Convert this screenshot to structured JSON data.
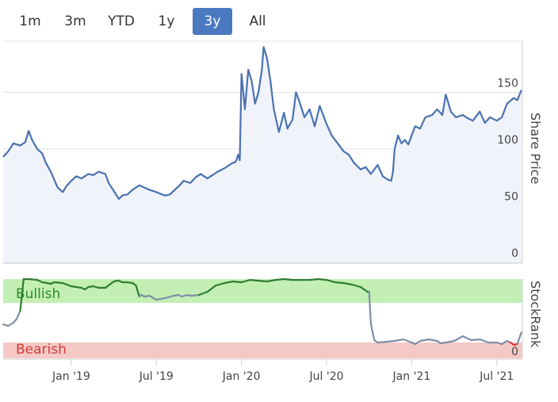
{
  "range_selector": {
    "buttons": [
      "1m",
      "3m",
      "YTD",
      "1y",
      "3y",
      "All"
    ],
    "selected": "3y"
  },
  "colors": {
    "price_line": "#4a72b0",
    "price_fill": "#f1f3fb",
    "bullish_band": "#c4efb4",
    "bearish_band": "#f4c9c5",
    "bullish_line": "#2e7d32",
    "neutral_line": "#7f8fa6",
    "bearish_line": "#d93a3a",
    "selected_button": "#4a79bf"
  },
  "chart_data": [
    {
      "type": "area",
      "name": "price-chart",
      "ylabel": "Share Price",
      "ylim": [
        0,
        195
      ],
      "yticks": [
        0,
        50,
        100,
        150
      ],
      "xlim": [
        2018.6,
        2021.65
      ],
      "xticks": [
        {
          "value": 2019.0,
          "label": "Jan '19"
        },
        {
          "value": 2019.5,
          "label": "Jul '19"
        },
        {
          "value": 2020.0,
          "label": "Jan '20"
        },
        {
          "value": 2020.5,
          "label": "Jul '20"
        },
        {
          "value": 2021.0,
          "label": "Jan '21"
        },
        {
          "value": 2021.5,
          "label": "Jul '21"
        }
      ],
      "series": [
        {
          "name": "Share Price",
          "x": [
            2018.6,
            2018.63,
            2018.66,
            2018.7,
            2018.73,
            2018.75,
            2018.77,
            2018.8,
            2018.83,
            2018.85,
            2018.88,
            2018.92,
            2018.95,
            2018.97,
            2019.0,
            2019.03,
            2019.06,
            2019.1,
            2019.13,
            2019.16,
            2019.2,
            2019.22,
            2019.25,
            2019.28,
            2019.3,
            2019.33,
            2019.36,
            2019.4,
            2019.43,
            2019.46,
            2019.5,
            2019.55,
            2019.58,
            2019.6,
            2019.63,
            2019.66,
            2019.7,
            2019.73,
            2019.76,
            2019.8,
            2019.83,
            2019.86,
            2019.9,
            2019.93,
            2019.95,
            2019.96,
            2019.97,
            2019.98,
            2019.99,
            2020.0,
            2020.02,
            2020.04,
            2020.06,
            2020.08,
            2020.1,
            2020.12,
            2020.13,
            2020.15,
            2020.17,
            2020.19,
            2020.22,
            2020.25,
            2020.27,
            2020.3,
            2020.32,
            2020.34,
            2020.37,
            2020.4,
            2020.43,
            2020.46,
            2020.5,
            2020.53,
            2020.56,
            2020.6,
            2020.63,
            2020.66,
            2020.7,
            2020.73,
            2020.76,
            2020.8,
            2020.83,
            2020.86,
            2020.88,
            2020.89,
            2020.9,
            2020.92,
            2020.94,
            2020.96,
            2020.98,
            2021.0,
            2021.02,
            2021.05,
            2021.08,
            2021.12,
            2021.15,
            2021.18,
            2021.2,
            2021.23,
            2021.26,
            2021.3,
            2021.33,
            2021.36,
            2021.4,
            2021.43,
            2021.46,
            2021.5,
            2021.53,
            2021.56,
            2021.6,
            2021.62,
            2021.645
          ],
          "y": [
            93,
            98,
            105,
            103,
            106,
            116,
            108,
            100,
            96,
            88,
            80,
            66,
            62,
            67,
            72,
            76,
            74,
            78,
            77,
            80,
            78,
            70,
            63,
            56,
            59,
            60,
            64,
            68,
            66,
            64,
            62,
            59,
            60,
            63,
            67,
            72,
            70,
            75,
            78,
            74,
            77,
            80,
            83,
            86,
            88,
            88,
            90,
            95,
            90,
            166,
            135,
            170,
            160,
            140,
            150,
            170,
            190,
            180,
            160,
            135,
            115,
            132,
            118,
            126,
            150,
            142,
            128,
            135,
            120,
            138,
            122,
            112,
            106,
            98,
            95,
            88,
            82,
            84,
            78,
            86,
            76,
            73,
            72,
            80,
            100,
            112,
            105,
            108,
            104,
            112,
            120,
            118,
            128,
            130,
            135,
            130,
            148,
            133,
            128,
            130,
            127,
            125,
            133,
            123,
            128,
            125,
            128,
            140,
            145,
            143,
            152
          ]
        }
      ]
    },
    {
      "type": "line",
      "name": "stockrank-chart",
      "ylabel": "StockRank",
      "ylim": [
        0,
        100
      ],
      "yticks": [
        0
      ],
      "bands": [
        {
          "label": "Bullish",
          "from": 70,
          "to": 100
        },
        {
          "label": "Bearish",
          "from": 0,
          "to": 20
        }
      ],
      "series": [
        {
          "name": "StockRank",
          "x": [
            2018.6,
            2018.63,
            2018.66,
            2018.68,
            2018.7,
            2018.72,
            2018.73,
            2018.75,
            2018.8,
            2018.83,
            2018.86,
            2018.88,
            2018.9,
            2018.95,
            2019.0,
            2019.03,
            2019.06,
            2019.08,
            2019.1,
            2019.13,
            2019.16,
            2019.2,
            2019.25,
            2019.27,
            2019.28,
            2019.3,
            2019.33,
            2019.36,
            2019.38,
            2019.4,
            2019.41,
            2019.43,
            2019.46,
            2019.5,
            2019.55,
            2019.6,
            2019.63,
            2019.65,
            2019.68,
            2019.7,
            2019.75,
            2019.8,
            2019.85,
            2019.9,
            2019.95,
            2020.0,
            2020.05,
            2020.1,
            2020.15,
            2020.2,
            2020.25,
            2020.3,
            2020.35,
            2020.4,
            2020.45,
            2020.5,
            2020.55,
            2020.6,
            2020.65,
            2020.7,
            2020.72,
            2020.74,
            2020.75,
            2020.76,
            2020.78,
            2020.8,
            2020.85,
            2020.9,
            2020.95,
            2021.0,
            2021.02,
            2021.05,
            2021.1,
            2021.15,
            2021.17,
            2021.2,
            2021.25,
            2021.3,
            2021.35,
            2021.4,
            2021.45,
            2021.5,
            2021.53,
            2021.56,
            2021.58,
            2021.6,
            2021.62,
            2021.645
          ],
          "y": [
            43,
            41,
            45,
            50,
            60,
            100,
            100,
            100,
            99,
            96,
            95,
            94,
            96,
            95,
            91,
            90,
            89,
            87,
            90,
            91,
            89,
            89,
            97,
            98,
            98,
            96,
            96,
            95,
            92,
            78,
            80,
            78,
            79,
            74,
            76,
            79,
            80,
            78,
            80,
            79,
            80,
            84,
            92,
            95,
            97,
            96,
            99,
            98,
            97,
            99,
            100,
            99,
            99,
            99,
            100,
            99,
            96,
            95,
            93,
            90,
            87,
            84,
            84,
            44,
            23,
            20,
            21,
            22,
            24,
            20,
            18,
            22,
            24,
            22,
            19,
            20,
            22,
            28,
            23,
            24,
            20,
            20,
            18,
            22,
            20,
            17,
            18,
            33
          ]
        }
      ]
    }
  ]
}
